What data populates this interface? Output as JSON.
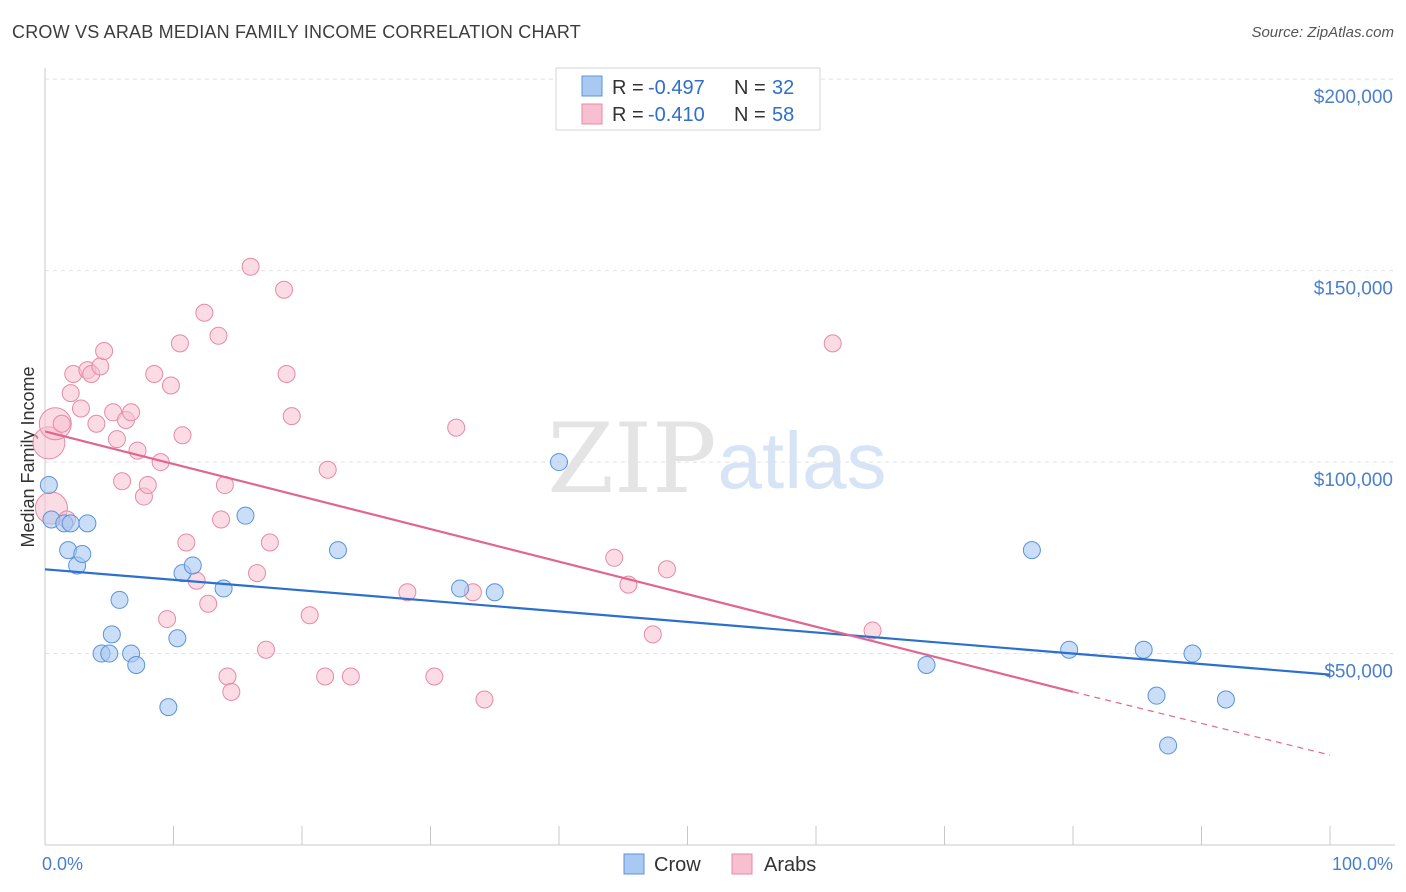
{
  "title": "CROW VS ARAB MEDIAN FAMILY INCOME CORRELATION CHART",
  "source": "Source: ZipAtlas.com",
  "watermark": {
    "zip": "ZIP",
    "atlas": "atlas"
  },
  "colors": {
    "crow_fill": "#a9c8f2",
    "crow_stroke": "#5b93d9",
    "crow_line": "#2b6fcf",
    "arab_fill": "#f7bfd0",
    "arab_stroke": "#e58aa8",
    "arab_line": "#e06690",
    "tick": "#4a7fcb",
    "grid": "#e2e2e2"
  },
  "legend": {
    "rows": [
      {
        "r_label": "R =",
        "r_value": "-0.497",
        "n_label": "N =",
        "n_value": "32",
        "series": "crow"
      },
      {
        "r_label": "R =",
        "r_value": "-0.410",
        "n_label": "N =",
        "n_value": "58",
        "series": "arab"
      }
    ]
  },
  "chart_data": {
    "type": "scatter",
    "title": "CROW VS ARAB MEDIAN FAMILY INCOME CORRELATION CHART",
    "xlabel": "",
    "ylabel": "Median Family Income",
    "xlim": [
      0,
      100
    ],
    "ylim": [
      0,
      205000
    ],
    "x_tick_labels": [
      "0.0%",
      "100.0%"
    ],
    "y_ticks": [
      50000,
      100000,
      150000,
      200000
    ],
    "y_tick_labels": [
      "$50,000",
      "$100,000",
      "$150,000",
      "$200,000"
    ],
    "grid": true,
    "legend_position": "top-center",
    "series": [
      {
        "name": "Crow",
        "points": [
          [
            0.3,
            94000
          ],
          [
            0.5,
            85000
          ],
          [
            1.5,
            84000
          ],
          [
            2,
            84000
          ],
          [
            3.3,
            84000
          ],
          [
            1.8,
            77000
          ],
          [
            2.5,
            73000
          ],
          [
            2.9,
            76000
          ],
          [
            5.8,
            64000
          ],
          [
            5.2,
            55000
          ],
          [
            4.4,
            50000
          ],
          [
            5.0,
            50000
          ],
          [
            6.7,
            50000
          ],
          [
            7.1,
            47000
          ],
          [
            10.3,
            54000
          ],
          [
            9.6,
            36000
          ],
          [
            10.7,
            71000
          ],
          [
            11.5,
            73000
          ],
          [
            13.9,
            67000
          ],
          [
            15.6,
            86000
          ],
          [
            22.8,
            77000
          ],
          [
            32.3,
            67000
          ],
          [
            35,
            66000
          ],
          [
            40,
            100000
          ],
          [
            68.6,
            47000
          ],
          [
            76.8,
            77000
          ],
          [
            79.7,
            51000
          ],
          [
            85.5,
            51000
          ],
          [
            86.5,
            39000
          ],
          [
            89.3,
            50000
          ],
          [
            91.9,
            38000
          ],
          [
            87.4,
            26000
          ]
        ],
        "trend": {
          "x": [
            0,
            100
          ],
          "y": [
            72000,
            44500
          ]
        }
      },
      {
        "name": "Arabs",
        "points": [
          [
            0.3,
            105000
          ],
          [
            0.5,
            88000
          ],
          [
            0.8,
            110000
          ],
          [
            1.3,
            110000
          ],
          [
            2.0,
            118000
          ],
          [
            2.2,
            123000
          ],
          [
            2.8,
            114000
          ],
          [
            3.3,
            124000
          ],
          [
            3.6,
            123000
          ],
          [
            4.0,
            110000
          ],
          [
            4.3,
            125000
          ],
          [
            4.6,
            129000
          ],
          [
            5.3,
            113000
          ],
          [
            5.6,
            106000
          ],
          [
            6.0,
            95000
          ],
          [
            6.3,
            111000
          ],
          [
            6.7,
            113000
          ],
          [
            7.2,
            103000
          ],
          [
            7.7,
            91000
          ],
          [
            8.0,
            94000
          ],
          [
            8.5,
            123000
          ],
          [
            9.0,
            100000
          ],
          [
            9.5,
            59000
          ],
          [
            9.8,
            120000
          ],
          [
            10.5,
            131000
          ],
          [
            10.7,
            107000
          ],
          [
            11.0,
            79000
          ],
          [
            11.8,
            69000
          ],
          [
            12.4,
            139000
          ],
          [
            12.7,
            63000
          ],
          [
            13.5,
            133000
          ],
          [
            13.7,
            85000
          ],
          [
            14.2,
            44000
          ],
          [
            14.5,
            40000
          ],
          [
            14.0,
            94000
          ],
          [
            16.0,
            151000
          ],
          [
            16.5,
            71000
          ],
          [
            17.2,
            51000
          ],
          [
            17.5,
            79000
          ],
          [
            18.6,
            145000
          ],
          [
            18.8,
            123000
          ],
          [
            19.2,
            112000
          ],
          [
            20.6,
            60000
          ],
          [
            21.8,
            44000
          ],
          [
            22.0,
            98000
          ],
          [
            23.8,
            44000
          ],
          [
            28.2,
            66000
          ],
          [
            30.3,
            44000
          ],
          [
            32.0,
            109000
          ],
          [
            33.3,
            66000
          ],
          [
            34.2,
            38000
          ],
          [
            44.3,
            75000
          ],
          [
            45.4,
            68000
          ],
          [
            47.3,
            55000
          ],
          [
            48.4,
            72000
          ],
          [
            61.3,
            131000
          ],
          [
            64.4,
            56000
          ],
          [
            1.7,
            85000
          ]
        ],
        "trend": {
          "x": [
            0,
            80
          ],
          "y": [
            108000,
            40000
          ]
        },
        "trend_dashed": {
          "x": [
            80,
            100
          ],
          "y": [
            40000,
            23500
          ]
        }
      }
    ]
  },
  "bottom_legend": [
    {
      "label": "Crow",
      "series": "crow"
    },
    {
      "label": "Arabs",
      "series": "arab"
    }
  ]
}
